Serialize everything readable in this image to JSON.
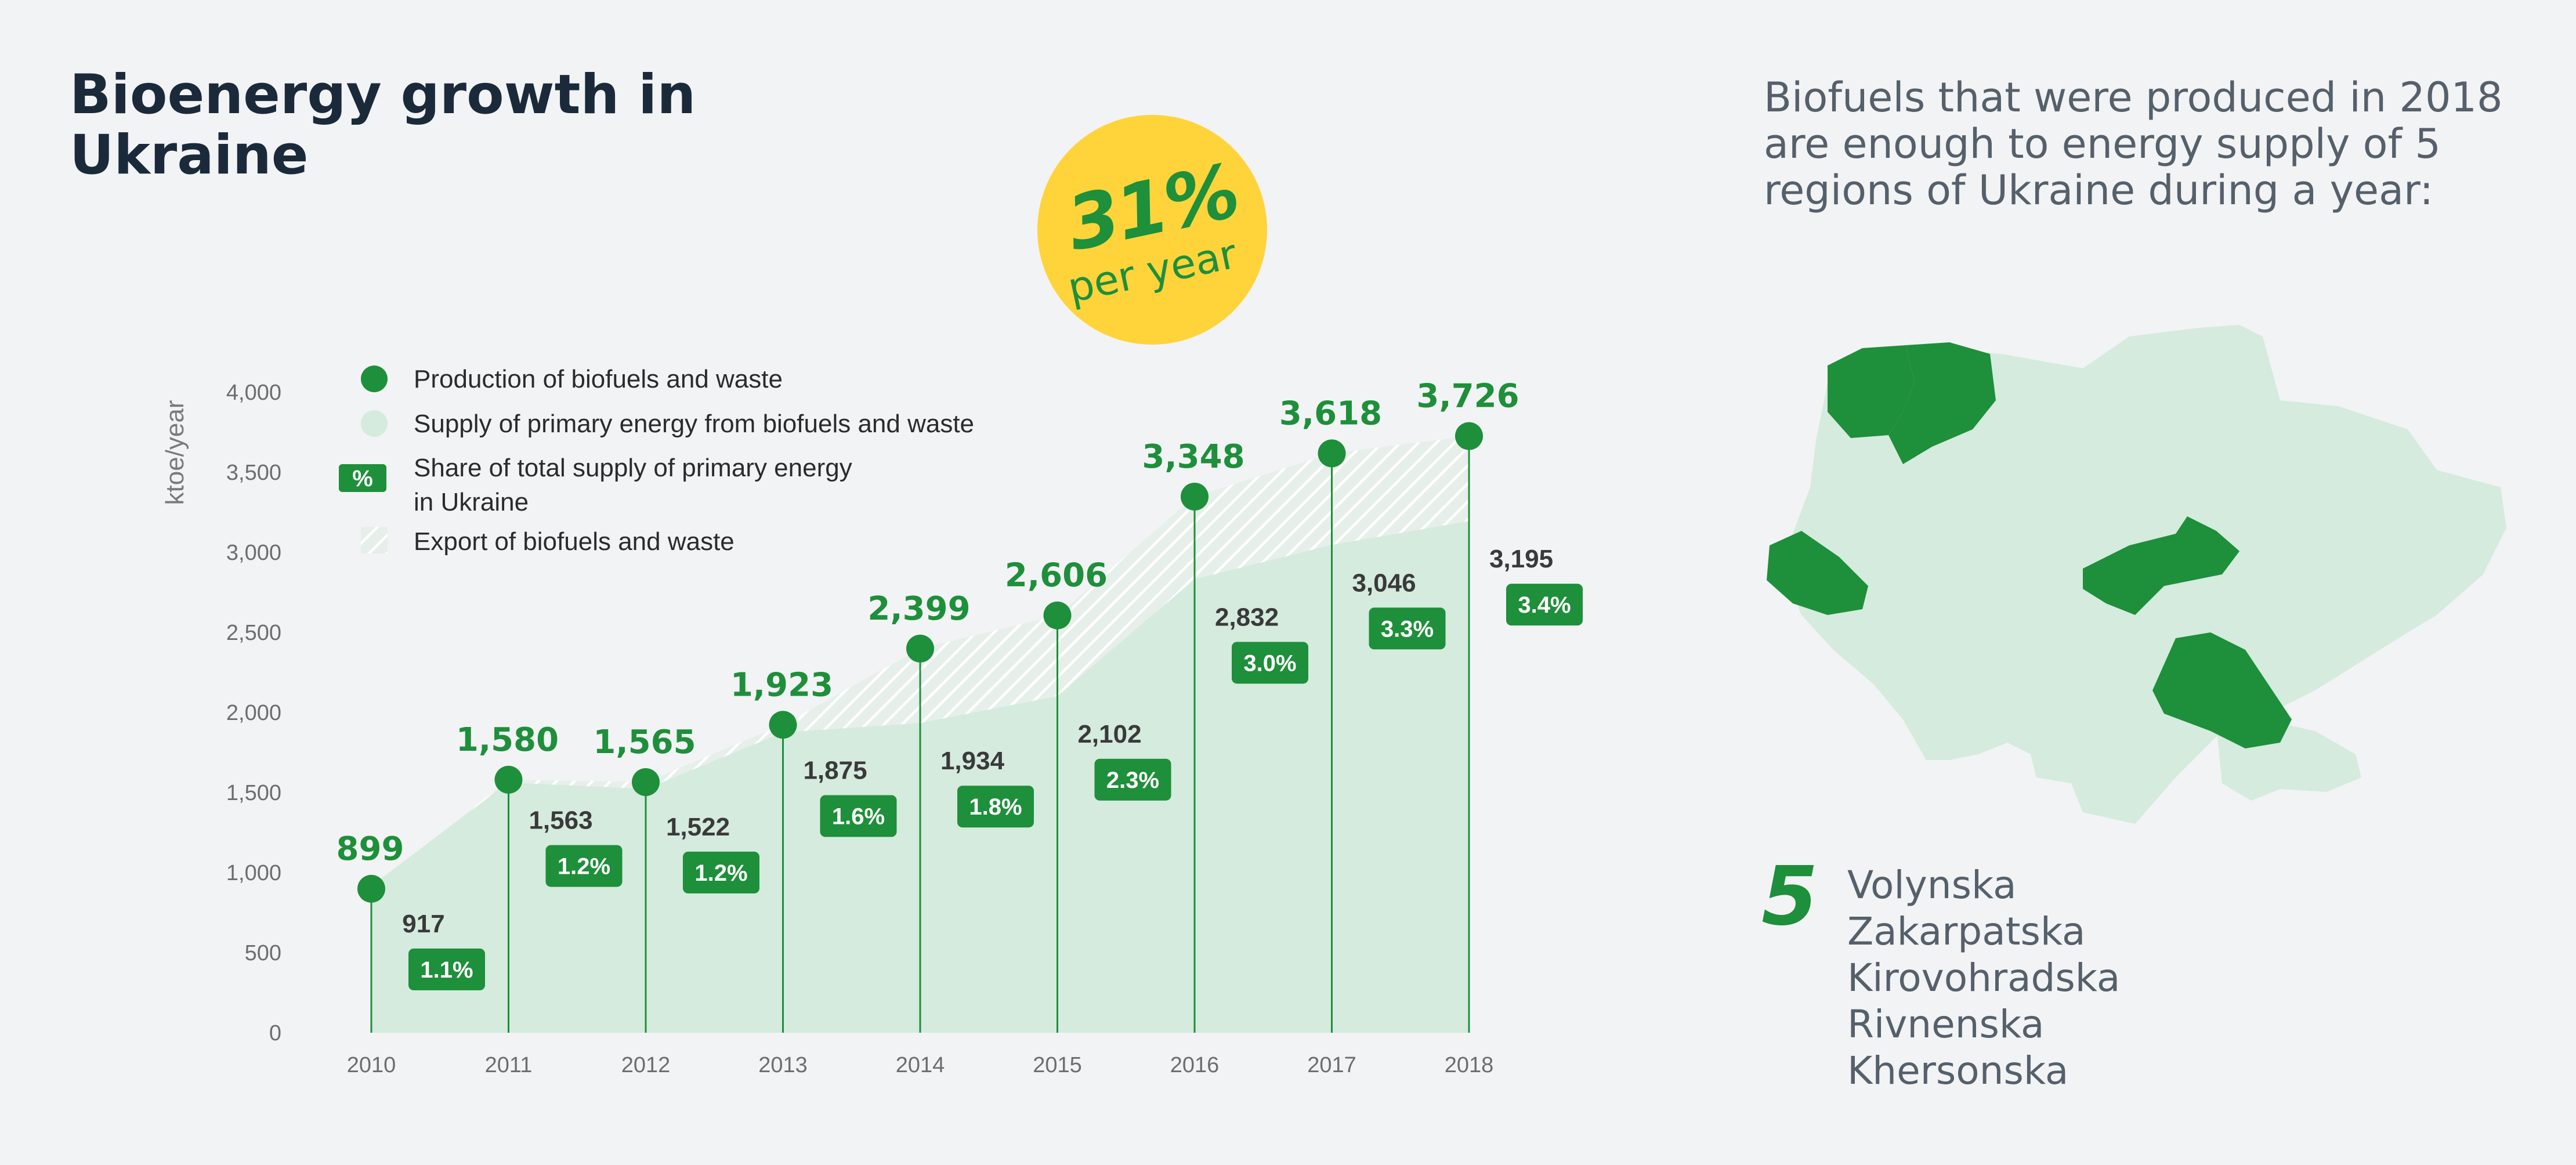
{
  "title": "Bioenergy growth in Ukraine",
  "badge": {
    "value": "31%",
    "subtitle": "per year"
  },
  "legend": {
    "production": "Production of biofuels and waste",
    "supply": "Supply of primary energy from biofuels and waste",
    "share_line1": "Share of total supply of primary energy",
    "share_line2": "in Ukraine",
    "share_icon": "%",
    "export": "Export of biofuels and waste"
  },
  "chart_data": {
    "type": "area",
    "ylabel": "ktoe/year",
    "ylim": [
      0,
      4000
    ],
    "yticks": [
      "0",
      "500",
      "1,000",
      "1,500",
      "2,000",
      "2,500",
      "3,000",
      "3,500",
      "4,000"
    ],
    "x": [
      "2010",
      "2011",
      "2012",
      "2013",
      "2014",
      "2015",
      "2016",
      "2017",
      "2018"
    ],
    "series": [
      {
        "name": "Production of biofuels and waste",
        "values": [
          899,
          1580,
          1565,
          1923,
          2399,
          2606,
          3348,
          3618,
          3726
        ],
        "labels": [
          "899",
          "1,580",
          "1,565",
          "1,923",
          "2,399",
          "2,606",
          "3,348",
          "3,618",
          "3,726"
        ]
      },
      {
        "name": "Supply of primary energy from biofuels and waste",
        "values": [
          917,
          1563,
          1522,
          1875,
          1934,
          2102,
          2832,
          3046,
          3195
        ],
        "labels": [
          "917",
          "1,563",
          "1,522",
          "1,875",
          "1,934",
          "2,102",
          "2,832",
          "3,046",
          "3,195"
        ]
      },
      {
        "name": "Share of total supply of primary energy in Ukraine",
        "values": [
          1.1,
          1.2,
          1.2,
          1.6,
          1.8,
          2.3,
          3.0,
          3.3,
          3.4
        ],
        "labels": [
          "1.1%",
          "1.2%",
          "1.2%",
          "1.6%",
          "1.8%",
          "2.3%",
          "3.0%",
          "3.3%",
          "3.4%"
        ]
      }
    ],
    "legend_position": "top-left",
    "grid": false,
    "colors": {
      "production": "#1e8f3a",
      "supply": "#d4ebdd",
      "share": "#1e8f3a",
      "export_hatch": "#ffffff"
    }
  },
  "right_panel": {
    "text": "Biofuels that were produced in 2018 are enough to energy supply of 5 regions of Ukraine during a year:",
    "count": "5",
    "regions": [
      "Volynska",
      "Zakarpatska",
      "Kirovohradska",
      "Rivnenska",
      "Khersonska"
    ],
    "map_colors": {
      "country": "#d4ebdd",
      "highlight": "#1e8f3a"
    }
  }
}
